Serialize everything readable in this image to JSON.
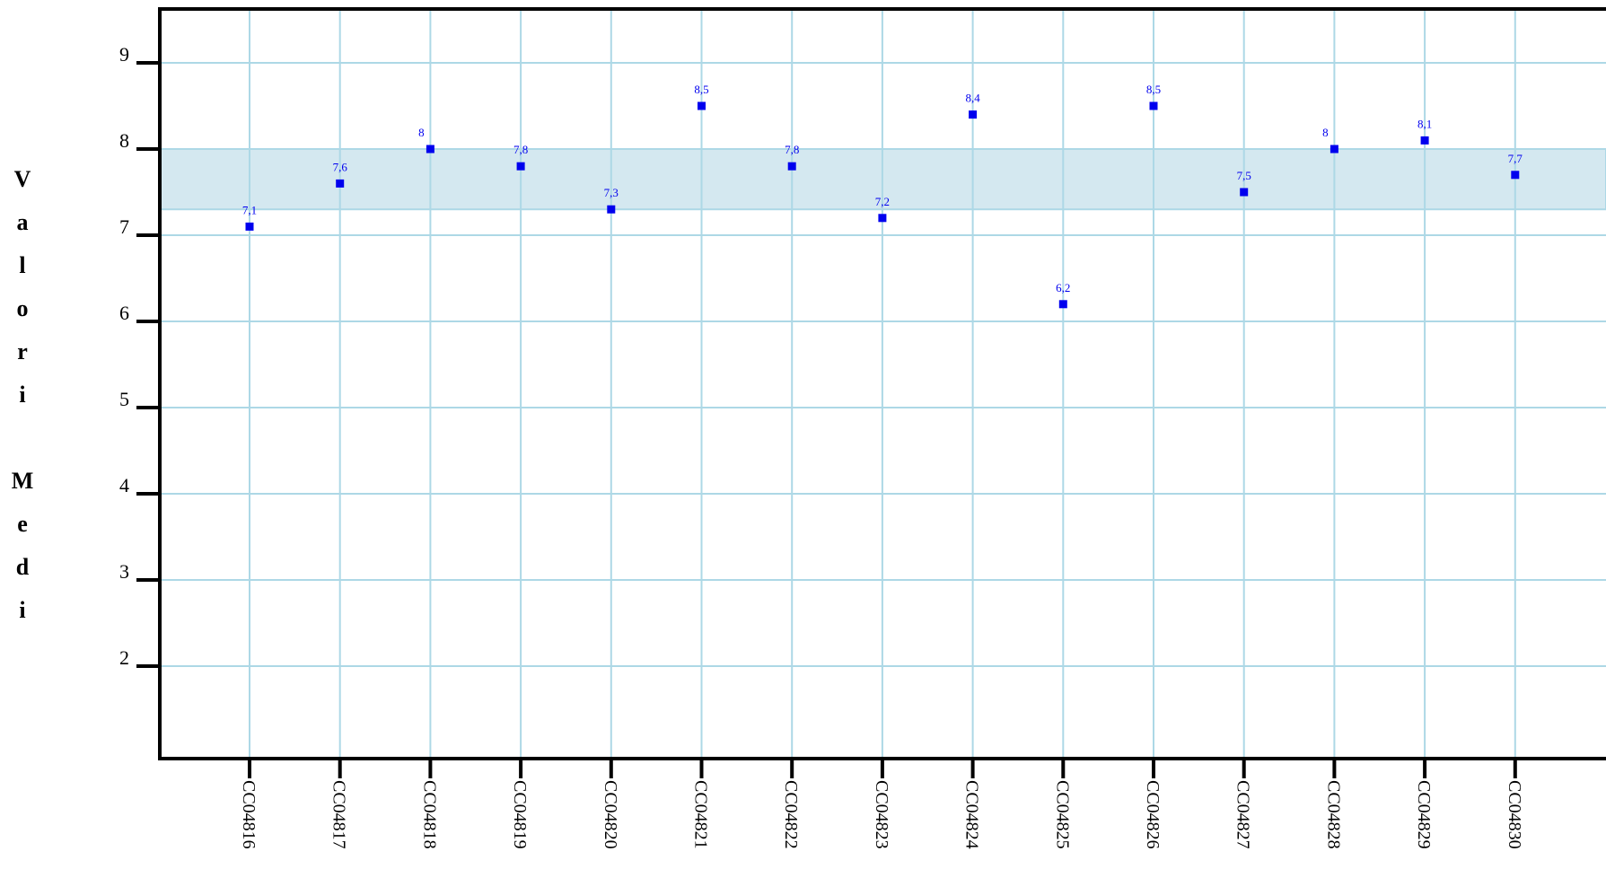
{
  "chart_data": {
    "type": "scatter",
    "title": "",
    "xlabel": "",
    "ylabel": "Valori Medi",
    "categories": [
      "CC04816",
      "CC04817",
      "CC04818",
      "CC04819",
      "CC04820",
      "CC04821",
      "CC04822",
      "CC04823",
      "CC04824",
      "CC04825",
      "CC04826",
      "CC04827",
      "CC04828",
      "CC04829",
      "CC04830"
    ],
    "values": [
      7.1,
      7.6,
      8,
      7.8,
      7.3,
      8.5,
      7.8,
      7.2,
      8.4,
      6.2,
      8.5,
      7.5,
      8,
      8.1,
      7.7
    ],
    "data_labels": [
      "7,1",
      "7,6",
      "8",
      "7,8",
      "7,3",
      "8,5",
      "7,8",
      "7,2",
      "8,4",
      "6,2",
      "8,5",
      "7,5",
      "8",
      "8,1",
      "7,7"
    ],
    "y_ticks": [
      2,
      3,
      4,
      5,
      6,
      7,
      8,
      9
    ],
    "y_tick_labels": [
      "2",
      "3",
      "4",
      "5",
      "6",
      "7",
      "8",
      "9"
    ],
    "ylim": [
      1,
      9.6
    ],
    "band": [
      7.3,
      8
    ],
    "grid": true,
    "legend": "none",
    "colors": {
      "marker": "#0000ee",
      "grid": "#add8e6",
      "band": "#d4e8f0",
      "axis": "#000000"
    }
  }
}
